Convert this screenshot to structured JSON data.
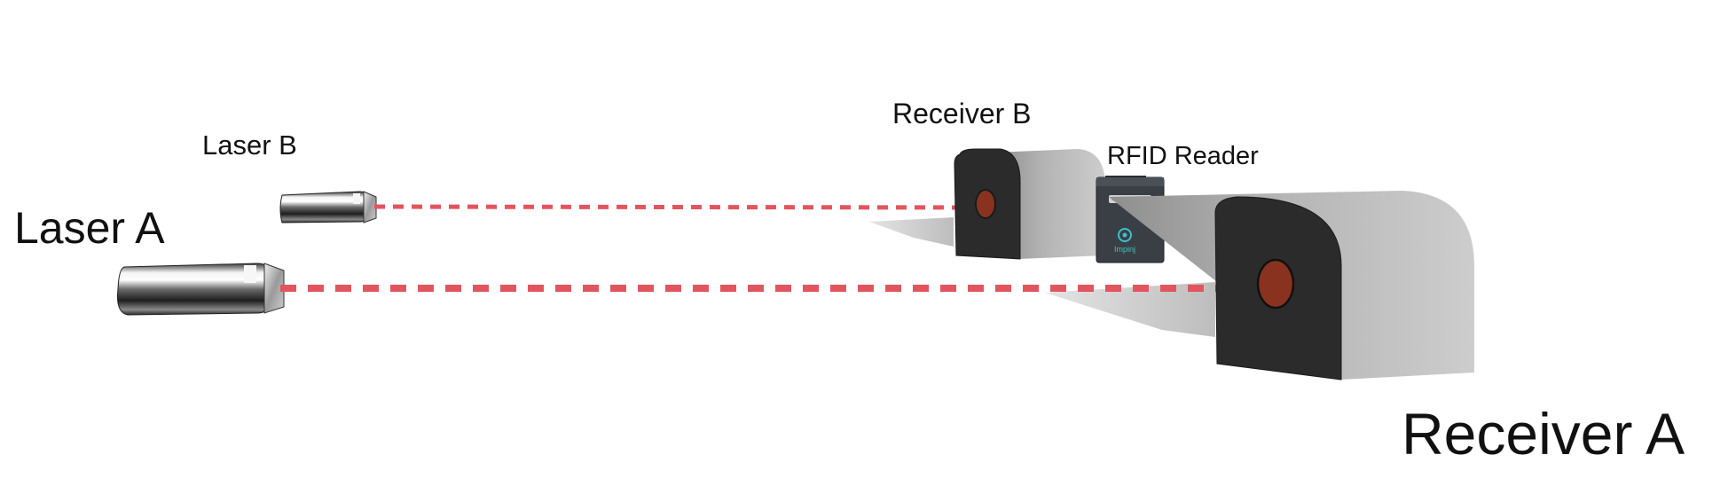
{
  "labels": {
    "laser_a": "Laser A",
    "laser_b": "Laser B",
    "receiver_b": "Receiver B",
    "rfid_reader": "RFID Reader",
    "receiver_a": "Receiver A"
  },
  "reader_brand": "Impinj",
  "icons": {
    "laser": "laser-emitter-icon",
    "receiver": "laser-receiver-icon",
    "rfid": "rfid-reader-icon"
  },
  "colors": {
    "beam": "#e2555f",
    "receiver_face": "#2b2b2b",
    "receiver_body": "#a8a8a8",
    "receiver_target": "#8a3220",
    "reader_body": "#3a3f45",
    "reader_logo": "#3ec1c9"
  }
}
